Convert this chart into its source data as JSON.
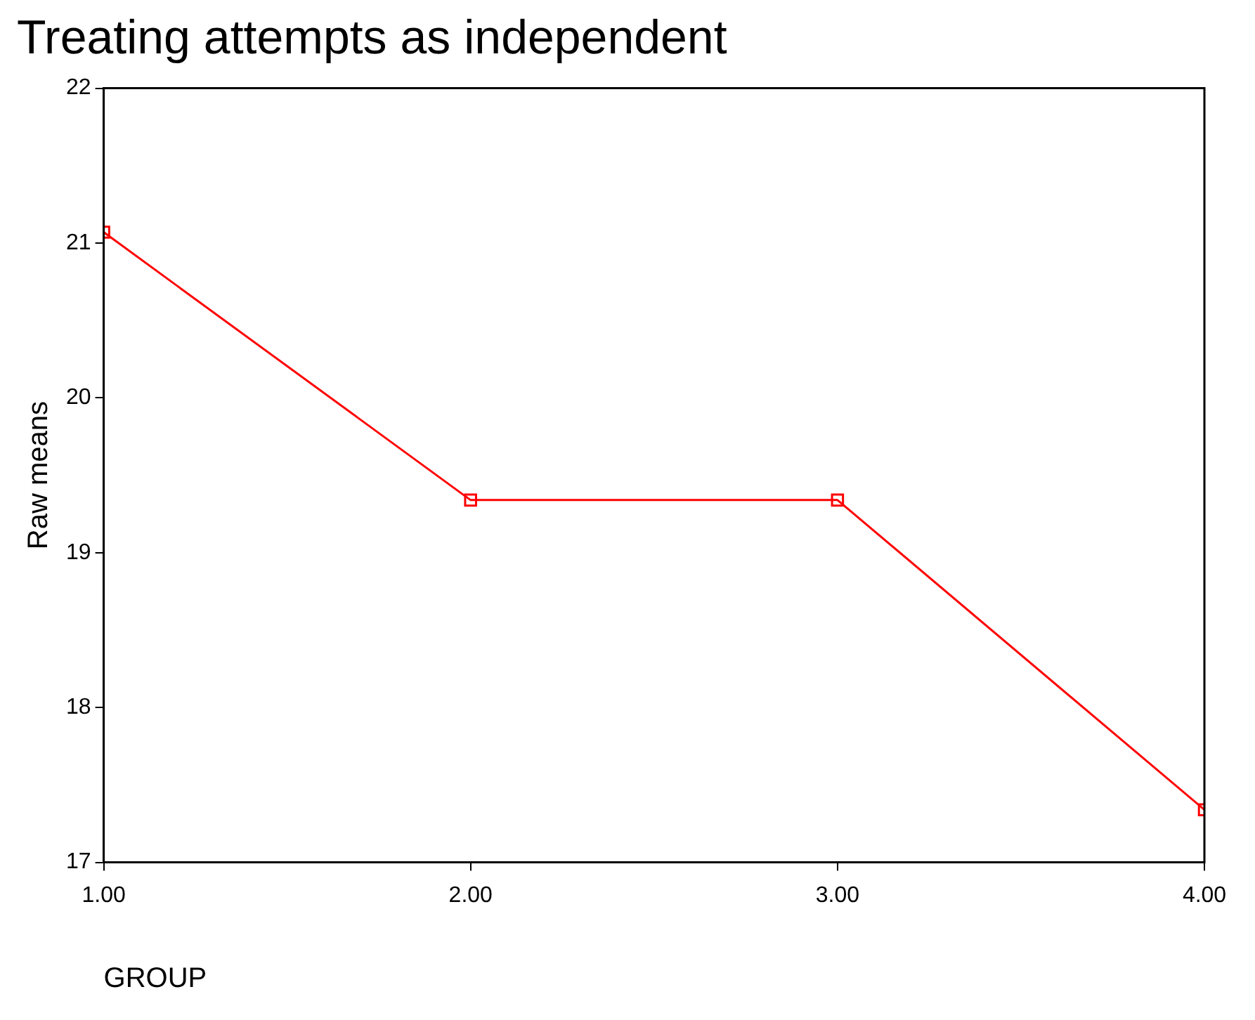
{
  "chart_data": {
    "type": "line",
    "title": "Treating attempts as independent",
    "xlabel": "GROUP",
    "ylabel": "Raw means",
    "x": [
      1,
      2,
      3,
      4
    ],
    "series": [
      {
        "color": "#ff0000",
        "values": [
          21.07,
          19.34,
          19.34,
          17.34
        ]
      }
    ],
    "xlim": [
      1,
      4
    ],
    "xticks": [
      {
        "value": 1,
        "label": "1.00"
      },
      {
        "value": 2,
        "label": "2.00"
      },
      {
        "value": 3,
        "label": "3.00"
      },
      {
        "value": 4,
        "label": "4.00"
      }
    ],
    "ylim": [
      17,
      22
    ],
    "yticks": [
      17,
      18,
      19,
      20,
      21,
      22
    ],
    "grid": false,
    "legend": false,
    "marker": "square",
    "line_style": "solid"
  }
}
